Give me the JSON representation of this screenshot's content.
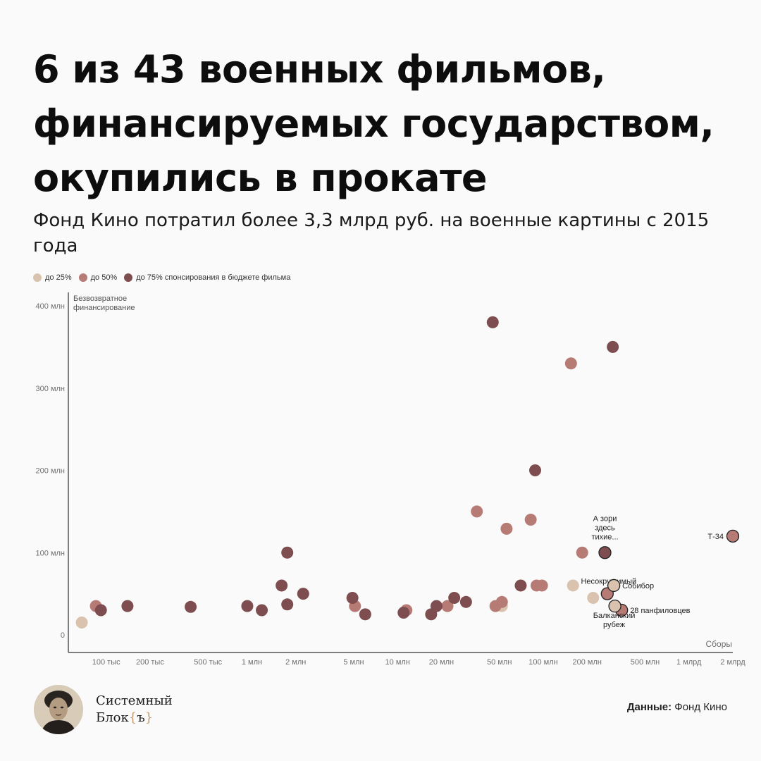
{
  "title": "6 из 43 военных фильмов, финансируемых государством, окупились в прокате",
  "subtitle": "Фонд Кино потратил более 3,3 млрд руб. на военные картины с 2015 года",
  "legend": [
    {
      "label": "до 25%",
      "color": "#d9c3ae"
    },
    {
      "label": "до 50%",
      "color": "#b67b75"
    },
    {
      "label": "до 75% спонсирования в бюджете фильма",
      "color": "#7e4d4f"
    }
  ],
  "logo": {
    "line1": "Системный",
    "line2_prefix": "Блок",
    "brace_open": "{",
    "brace_char": "ъ",
    "brace_close": "}"
  },
  "source": {
    "label": "Данные:",
    "value": "Фонд Кино"
  },
  "chart_data": {
    "type": "scatter",
    "title": "",
    "xlabel": "Сборы",
    "ylabel": "Безвозвратное финансирование",
    "x_scale": "log",
    "x_ticks": [
      {
        "value": 100000,
        "label": "100 тыс"
      },
      {
        "value": 200000,
        "label": "200 тыс"
      },
      {
        "value": 500000,
        "label": "500 тыс"
      },
      {
        "value": 1000000,
        "label": "1 млн"
      },
      {
        "value": 2000000,
        "label": "2 млн"
      },
      {
        "value": 5000000,
        "label": "5 млн"
      },
      {
        "value": 10000000,
        "label": "10 млн"
      },
      {
        "value": 20000000,
        "label": "20 млн"
      },
      {
        "value": 50000000,
        "label": "50 млн"
      },
      {
        "value": 100000000,
        "label": "100 млн"
      },
      {
        "value": 200000000,
        "label": "200 млн"
      },
      {
        "value": 500000000,
        "label": "500 млн"
      },
      {
        "value": 1000000000,
        "label": "1 млрд"
      },
      {
        "value": 2000000000,
        "label": "2 млрд"
      }
    ],
    "y_ticks": [
      {
        "value": 0,
        "label": "0"
      },
      {
        "value": 100,
        "label": "100 млн"
      },
      {
        "value": 200,
        "label": "200 млн"
      },
      {
        "value": 300,
        "label": "300 млн"
      },
      {
        "value": 400,
        "label": "400 млн"
      }
    ],
    "ylim": [
      0,
      400
    ],
    "xlim": [
      55000,
      2000000000
    ],
    "series": [
      {
        "name": "до 25%",
        "color": "#d9c3ae",
        "points": [
          {
            "x": 68000,
            "y": 15
          },
          {
            "x": 52000000,
            "y": 35
          },
          {
            "x": 160000000,
            "y": 60
          },
          {
            "x": 220000000,
            "y": 45
          }
        ]
      },
      {
        "name": "до 50%",
        "color": "#b67b75",
        "points": [
          {
            "x": 85000,
            "y": 35
          },
          {
            "x": 5100000,
            "y": 35
          },
          {
            "x": 11500000,
            "y": 30
          },
          {
            "x": 22000000,
            "y": 35
          },
          {
            "x": 35000000,
            "y": 150
          },
          {
            "x": 47000000,
            "y": 35
          },
          {
            "x": 52000000,
            "y": 40
          },
          {
            "x": 56000000,
            "y": 129
          },
          {
            "x": 82000000,
            "y": 140
          },
          {
            "x": 90000000,
            "y": 60
          },
          {
            "x": 98000000,
            "y": 60
          },
          {
            "x": 155000000,
            "y": 330
          },
          {
            "x": 185000000,
            "y": 100
          }
        ]
      },
      {
        "name": "до 75% спонсирования в бюджете фильма",
        "color": "#7e4d4f",
        "points": [
          {
            "x": 92000,
            "y": 30
          },
          {
            "x": 140000,
            "y": 35
          },
          {
            "x": 380000,
            "y": 34
          },
          {
            "x": 930000,
            "y": 35
          },
          {
            "x": 1170000,
            "y": 30
          },
          {
            "x": 1600000,
            "y": 60
          },
          {
            "x": 1750000,
            "y": 37
          },
          {
            "x": 1750000,
            "y": 100
          },
          {
            "x": 2250000,
            "y": 50
          },
          {
            "x": 4900000,
            "y": 45
          },
          {
            "x": 6000000,
            "y": 25
          },
          {
            "x": 11000000,
            "y": 27
          },
          {
            "x": 17000000,
            "y": 25
          },
          {
            "x": 18500000,
            "y": 35
          },
          {
            "x": 24500000,
            "y": 45
          },
          {
            "x": 29500000,
            "y": 40
          },
          {
            "x": 45000000,
            "y": 380
          },
          {
            "x": 70000000,
            "y": 60
          },
          {
            "x": 88000000,
            "y": 200
          },
          {
            "x": 300000000,
            "y": 350
          }
        ]
      }
    ],
    "labeled_points": [
      {
        "name": "А зори здесь тихие...",
        "label_lines": [
          "А зори",
          "здесь",
          "тихие..."
        ],
        "x": 265000000,
        "y": 100,
        "color": "#7e4d4f"
      },
      {
        "name": "Т-34",
        "label_lines": [
          "Т-34"
        ],
        "x": 2000000000,
        "y": 120,
        "color": "#b67b75"
      },
      {
        "name": "Несокрушимый",
        "label_lines": [
          "Несокрушимый"
        ],
        "x": 275000000,
        "y": 50,
        "color": "#b67b75"
      },
      {
        "name": "Собибор",
        "label_lines": [
          "Собибор"
        ],
        "x": 305000000,
        "y": 60,
        "color": "#d9c3ae"
      },
      {
        "name": "28 панфиловцев",
        "label_lines": [
          "28 панфиловцев"
        ],
        "x": 345000000,
        "y": 30,
        "color": "#b67b75"
      },
      {
        "name": "Балканский рубеж",
        "label_lines": [
          "Балканский",
          "рубеж"
        ],
        "x": 310000000,
        "y": 35,
        "color": "#d9c3ae"
      }
    ]
  }
}
